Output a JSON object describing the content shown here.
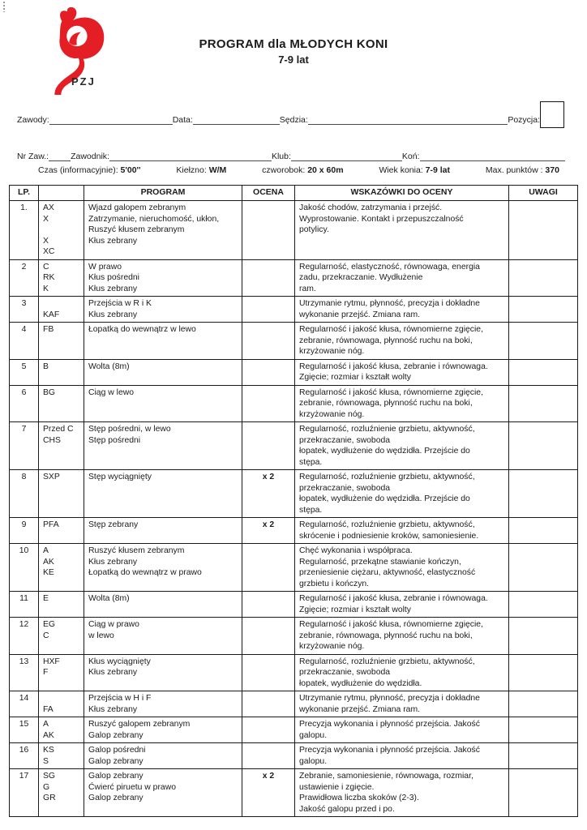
{
  "colors": {
    "logo_red": "#e31e24",
    "text": "#1c1c1c"
  },
  "logo": {
    "org": "PZJ"
  },
  "title": {
    "line1": "PROGRAM dla MŁODYCH  KONI",
    "line2": "7-9 lat"
  },
  "form": {
    "zawody_label": "Zawody:",
    "data_label": "Data:",
    "sedzia_label": "Sędzia:",
    "pozycja_label": "Pozycja:",
    "nr_zaw_label": "Nr Zaw.:",
    "zawodnik_label": "Zawodnik:",
    "klub_label": "Klub:",
    "kon_label": "Koń:"
  },
  "info": {
    "czas": {
      "label": "Czas (informacyjnie):",
      "value": "5'00''"
    },
    "kielzno": {
      "label": "Kiełzno:",
      "value": "W/M"
    },
    "czworobok": {
      "label": "czworobok:",
      "value": "20 x 60m"
    },
    "wiek": {
      "label": "Wiek konia:",
      "value": "7-9 lat"
    },
    "max": {
      "label": "Max. punktów :",
      "value": "370"
    }
  },
  "table": {
    "headers": {
      "lp": "LP.",
      "letters": "",
      "program": "PROGRAM",
      "ocena": "OCENA",
      "wskazowki": "WSKAZÓWKI DO OCENY",
      "uwagi": "UWAGI"
    },
    "rows": [
      {
        "lp": "1.",
        "letters": [
          "AX",
          "X",
          "",
          "X",
          "XC"
        ],
        "program": [
          "Wjazd galopem zebranym",
          "Zatrzymanie, nieruchomość, ukłon,",
          "Ruszyć  kłusem zebranym",
          "Kłus zebrany"
        ],
        "ocena": "",
        "wskazowki": [
          "Jakość chodów, zatrzymania i przejść.",
          "Wyprostowanie. Kontakt i przepuszczalność",
          "potylicy."
        ]
      },
      {
        "lp": "2",
        "letters": [
          "C",
          "RK",
          "K"
        ],
        "program": [
          "W prawo",
          "Kłus pośredni",
          "Kłus zebrany"
        ],
        "ocena": "",
        "wskazowki": [
          "Regularność, elastyczność, równowaga, energia",
          "zadu, przekraczanie. Wydłużenie",
          "ram."
        ]
      },
      {
        "lp": "3",
        "letters": [
          "",
          "KAF"
        ],
        "program": [
          "Przejścia w R i K",
          "Kłus zebrany"
        ],
        "ocena": "",
        "wskazowki": [
          "Utrzymanie rytmu, płynność, precyzja i dokładne",
          "wykonanie przejść. Zmiana ram."
        ]
      },
      {
        "lp": "4",
        "letters": [
          "FB"
        ],
        "program": [
          "Łopatką do wewnątrz w lewo"
        ],
        "ocena": "",
        "wskazowki": [
          "Regularność i jakość kłusa, równomierne zgięcie,",
          "zebranie, równowaga, płynność ruchu na boki,",
          "krzyżowanie nóg."
        ]
      },
      {
        "lp": "5",
        "letters": [
          "B"
        ],
        "program": [
          "Wolta (8m)"
        ],
        "ocena": "",
        "wskazowki": [
          "Regularność i jakość kłusa, zebranie i równowaga.",
          "Zgięcie; rozmiar i kształt wolty"
        ]
      },
      {
        "lp": "6",
        "letters": [
          "BG"
        ],
        "program": [
          "Ciąg w lewo"
        ],
        "ocena": "",
        "wskazowki": [
          "Regularność i jakość kłusa, równomierne zgięcie,",
          "zebranie, równowaga, płynność ruchu na boki,",
          "krzyżowanie nóg."
        ]
      },
      {
        "lp": "7",
        "letters": [
          "Przed C",
          "CHS"
        ],
        "program": [
          "Stęp pośredni, w lewo",
          "Stęp pośredni"
        ],
        "ocena": "",
        "wskazowki": [
          "Regularność, rozluźnienie grzbietu, aktywność,",
          "przekraczanie, swoboda",
          "łopatek, wydłużenie do wędzidła. Przejście do",
          "stępa."
        ]
      },
      {
        "lp": "8",
        "letters": [
          "SXP"
        ],
        "program": [
          "Stęp wyciągnięty"
        ],
        "ocena": "x 2",
        "wskazowki": [
          "Regularność, rozluźnienie grzbietu, aktywność,",
          "przekraczanie, swoboda",
          "łopatek, wydłużenie do wędzidła. Przejście do",
          "stępa."
        ]
      },
      {
        "lp": "9",
        "letters": [
          "PFA"
        ],
        "program": [
          "Stęp zebrany"
        ],
        "ocena": "x 2",
        "wskazowki": [
          "Regularność, rozluźnienie grzbietu, aktywność,",
          "skrócenie i podniesienie kroków, samoniesienie."
        ]
      },
      {
        "lp": "10",
        "letters": [
          "A",
          "AK",
          "KE"
        ],
        "program": [
          "Ruszyć kłusem zebranym",
          "Kłus zebrany",
          "Łopatką do wewnątrz w prawo"
        ],
        "ocena": "",
        "wskazowki": [
          "Chęć wykonania i współpraca.",
          "Regularność, przekątne stawianie kończyn,",
          "przeniesienie ciężaru, aktywność, elastyczność",
          "grzbietu i kończyn."
        ]
      },
      {
        "lp": "11",
        "letters": [
          "E"
        ],
        "program": [
          "Wolta (8m)"
        ],
        "ocena": "",
        "wskazowki": [
          "Regularność i jakość kłusa, zebranie i równowaga.",
          "Zgięcie; rozmiar i kształt wolty"
        ]
      },
      {
        "lp": "12",
        "letters": [
          "EG",
          "C"
        ],
        "program": [
          "Ciąg w prawo",
          "w lewo"
        ],
        "ocena": "",
        "wskazowki": [
          "Regularność i jakość kłusa, równomierne zgięcie,",
          "zebranie, równowaga, płynność ruchu na boki,",
          "krzyżowanie nóg."
        ]
      },
      {
        "lp": "13",
        "letters": [
          "HXF",
          "F"
        ],
        "program": [
          "Kłus wyciągnięty",
          "Kłus zebrany"
        ],
        "ocena": "",
        "wskazowki": [
          "Regularność, rozluźnienie grzbietu, aktywność,",
          "przekraczanie, swoboda",
          "łopatek, wydłużenie do wędzidła."
        ]
      },
      {
        "lp": "14",
        "letters": [
          "",
          "FA"
        ],
        "program": [
          "Przejścia w H i F",
          "Kłus zebrany"
        ],
        "ocena": "",
        "wskazowki": [
          "Utrzymanie rytmu, płynność, precyzja i dokładne",
          "wykonanie przejść. Zmiana ram."
        ]
      },
      {
        "lp": "15",
        "letters": [
          "A",
          "AK"
        ],
        "program": [
          "Ruszyć galopem zebranym",
          "Galop zebrany"
        ],
        "ocena": "",
        "wskazowki": [
          "Precyzja wykonania i płynność przejścia. Jakość",
          "galopu."
        ]
      },
      {
        "lp": "16",
        "letters": [
          "KS",
          "S"
        ],
        "program": [
          "Galop pośredni",
          "Galop zebrany"
        ],
        "ocena": "",
        "wskazowki": [
          "Precyzja wykonania i płynność przejścia. Jakość",
          "galopu."
        ]
      },
      {
        "lp": "17",
        "letters": [
          "SG",
          "G",
          "GR"
        ],
        "program": [
          "Galop zebrany",
          "Ćwierć piruetu w prawo",
          "Galop zebrany"
        ],
        "ocena": "x 2",
        "wskazowki": [
          "Zebranie, samoniesienie, równowaga, rozmiar,",
          "ustawienie i zgięcie.",
          "Prawidłowa liczba skoków (2-3).",
          "Jakość galopu przed i po."
        ]
      }
    ]
  }
}
